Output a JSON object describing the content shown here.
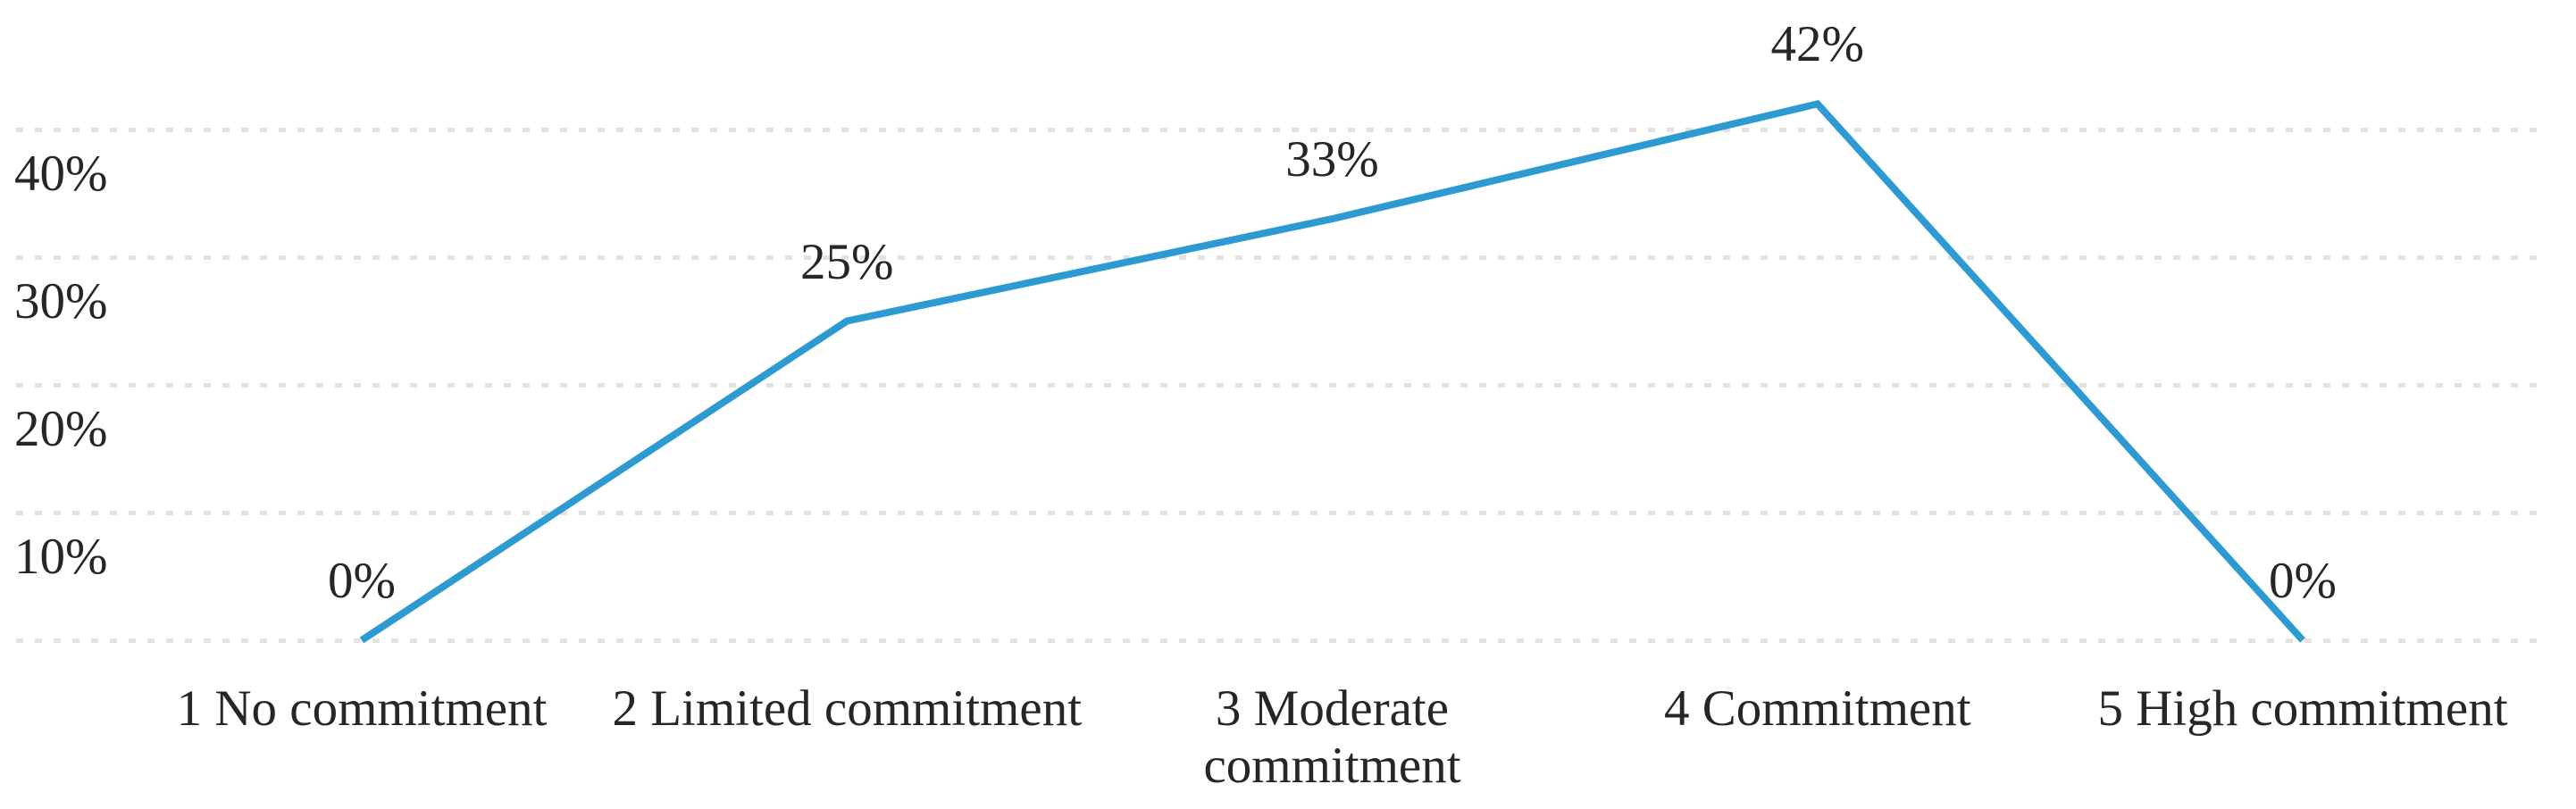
{
  "chart_data": {
    "type": "line",
    "title": "",
    "xlabel": "",
    "ylabel": "",
    "categories": [
      "1 No commitment",
      "2 Limited commitment",
      "3 Moderate commitment",
      "4 Commitment",
      "5 High commitment"
    ],
    "series": [
      {
        "name": "",
        "values": [
          0,
          25,
          33,
          42,
          0
        ]
      }
    ],
    "data_labels": [
      "0%",
      "25%",
      "33%",
      "42%",
      "0%"
    ],
    "y_axis": {
      "tick_labels": [
        "40%",
        "30%",
        "20%",
        "10%"
      ],
      "tick_values": [
        40,
        30,
        20,
        10
      ],
      "gridline_values": [
        40,
        30,
        20,
        10,
        0
      ],
      "min": 0,
      "max": 45
    },
    "grid": {
      "style": "dotted",
      "color": "#E2E2E2"
    },
    "line": {
      "color": "#2E9AD2",
      "width": 8
    },
    "text_color": "#262626",
    "background": "#FFFFFF",
    "legend": "none"
  }
}
